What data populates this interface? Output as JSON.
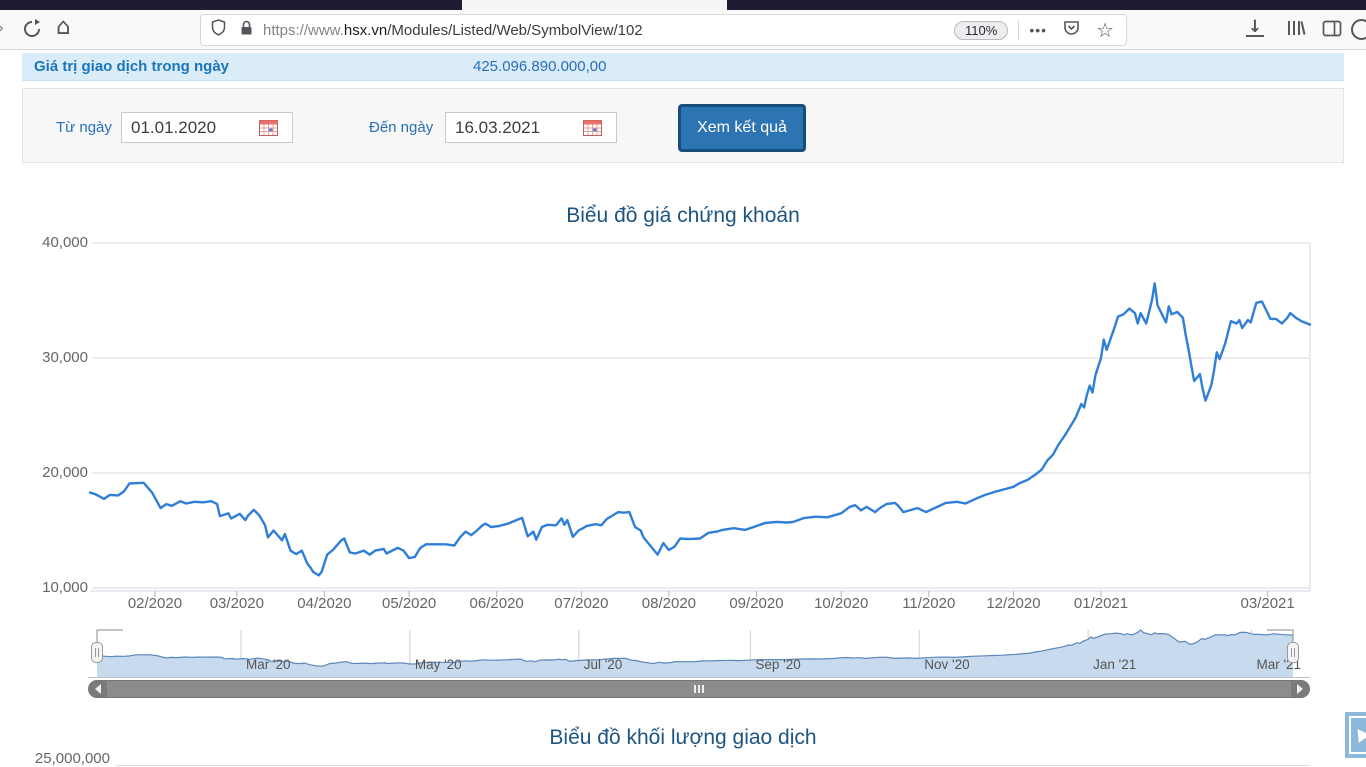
{
  "browser": {
    "url_protocol": "https://www.",
    "url_domain": "hsx.vn",
    "url_path": "/Modules/Listed/Web/SymbolView/102",
    "zoom_level": "110%",
    "icons": {
      "forward_chevron": "›",
      "home": "⌂",
      "star": "☆",
      "dots_menu": "•••",
      "download_arrow": "↓"
    }
  },
  "stats_row": {
    "label": "Giá trị giao dịch trong ngày",
    "value": "425.096.890.000,00"
  },
  "filter": {
    "from_label": "Từ ngày",
    "from_value": "01.01.2020",
    "to_label": "Đến ngày",
    "to_value": "16.03.2021",
    "submit_label": "Xem kết quả"
  },
  "chart_data": {
    "type": "line",
    "title": "Biểu đồ giá chứng khoán",
    "xlabel": "",
    "ylabel": "",
    "ylim": [
      10000,
      40000
    ],
    "grid": true,
    "x_range": [
      "2020-01-09",
      "2021-03-16"
    ],
    "yticks": [
      {
        "label": "40,000",
        "value": 40000
      },
      {
        "label": "30,000",
        "value": 30000
      },
      {
        "label": "20,000",
        "value": 20000
      },
      {
        "label": "10,000",
        "value": 10000
      }
    ],
    "xticks": [
      {
        "label": "02/2020",
        "date": "2020-02-01"
      },
      {
        "label": "03/2020",
        "date": "2020-03-01"
      },
      {
        "label": "04/2020",
        "date": "2020-04-01"
      },
      {
        "label": "05/2020",
        "date": "2020-05-01"
      },
      {
        "label": "06/2020",
        "date": "2020-06-01"
      },
      {
        "label": "07/2020",
        "date": "2020-07-01"
      },
      {
        "label": "08/2020",
        "date": "2020-08-01"
      },
      {
        "label": "09/2020",
        "date": "2020-09-01"
      },
      {
        "label": "10/2020",
        "date": "2020-10-01"
      },
      {
        "label": "11/2020",
        "date": "2020-11-01"
      },
      {
        "label": "12/2020",
        "date": "2020-12-01"
      },
      {
        "label": "01/2021",
        "date": "2021-01-01"
      },
      {
        "label": "03/2021",
        "date": "2021-03-01"
      }
    ],
    "navigator_labels": [
      {
        "label": "Mar '20",
        "date": "2020-03-01"
      },
      {
        "label": "May '20",
        "date": "2020-05-01"
      },
      {
        "label": "Jul '20",
        "date": "2020-07-01"
      },
      {
        "label": "Sep '20",
        "date": "2020-09-01"
      },
      {
        "label": "Nov '20",
        "date": "2020-11-01"
      },
      {
        "label": "Jan '21",
        "date": "2021-01-01"
      },
      {
        "label": "Mar '21",
        "date": "2021-03-01"
      }
    ],
    "series": [
      {
        "name": "price",
        "points": [
          [
            "2020-01-09",
            18300
          ],
          [
            "2020-01-11",
            18150
          ],
          [
            "2020-01-14",
            17750
          ],
          [
            "2020-01-16",
            18100
          ],
          [
            "2020-01-19",
            18050
          ],
          [
            "2020-01-21",
            18400
          ],
          [
            "2020-01-23",
            19100
          ],
          [
            "2020-01-28",
            19150
          ],
          [
            "2020-01-31",
            18300
          ],
          [
            "2020-02-03",
            16950
          ],
          [
            "2020-02-05",
            17300
          ],
          [
            "2020-02-07",
            17150
          ],
          [
            "2020-02-10",
            17550
          ],
          [
            "2020-02-12",
            17350
          ],
          [
            "2020-02-15",
            17500
          ],
          [
            "2020-02-18",
            17450
          ],
          [
            "2020-02-21",
            17550
          ],
          [
            "2020-02-23",
            17300
          ],
          [
            "2020-02-24",
            16250
          ],
          [
            "2020-02-27",
            16500
          ],
          [
            "2020-02-28",
            16050
          ],
          [
            "2020-03-02",
            16450
          ],
          [
            "2020-03-04",
            15900
          ],
          [
            "2020-03-05",
            16300
          ],
          [
            "2020-03-07",
            16800
          ],
          [
            "2020-03-09",
            16300
          ],
          [
            "2020-03-11",
            15450
          ],
          [
            "2020-03-12",
            14400
          ],
          [
            "2020-03-14",
            15000
          ],
          [
            "2020-03-17",
            14150
          ],
          [
            "2020-03-18",
            14700
          ],
          [
            "2020-03-20",
            13250
          ],
          [
            "2020-03-22",
            12950
          ],
          [
            "2020-03-24",
            13250
          ],
          [
            "2020-03-26",
            12100
          ],
          [
            "2020-03-27",
            11800
          ],
          [
            "2020-03-28",
            11400
          ],
          [
            "2020-03-30",
            11100
          ],
          [
            "2020-03-31",
            11400
          ],
          [
            "2020-04-02",
            12900
          ],
          [
            "2020-04-04",
            13300
          ],
          [
            "2020-04-07",
            14150
          ],
          [
            "2020-04-08",
            14300
          ],
          [
            "2020-04-10",
            13100
          ],
          [
            "2020-04-12",
            13000
          ],
          [
            "2020-04-15",
            13250
          ],
          [
            "2020-04-17",
            12900
          ],
          [
            "2020-04-19",
            13250
          ],
          [
            "2020-04-22",
            13400
          ],
          [
            "2020-04-23",
            13000
          ],
          [
            "2020-04-27",
            13500
          ],
          [
            "2020-04-29",
            13250
          ],
          [
            "2020-05-01",
            12600
          ],
          [
            "2020-05-03",
            12700
          ],
          [
            "2020-05-05",
            13500
          ],
          [
            "2020-05-07",
            13800
          ],
          [
            "2020-05-14",
            13800
          ],
          [
            "2020-05-17",
            13700
          ],
          [
            "2020-05-19",
            14400
          ],
          [
            "2020-05-21",
            14900
          ],
          [
            "2020-05-23",
            14600
          ],
          [
            "2020-05-25",
            15000
          ],
          [
            "2020-05-27",
            15450
          ],
          [
            "2020-05-28",
            15600
          ],
          [
            "2020-05-30",
            15300
          ],
          [
            "2020-06-02",
            15400
          ],
          [
            "2020-06-05",
            15600
          ],
          [
            "2020-06-08",
            15900
          ],
          [
            "2020-06-10",
            16100
          ],
          [
            "2020-06-12",
            14500
          ],
          [
            "2020-06-14",
            14900
          ],
          [
            "2020-06-15",
            14200
          ],
          [
            "2020-06-17",
            15300
          ],
          [
            "2020-06-19",
            15500
          ],
          [
            "2020-06-22",
            15450
          ],
          [
            "2020-06-24",
            16050
          ],
          [
            "2020-06-25",
            15500
          ],
          [
            "2020-06-26",
            15900
          ],
          [
            "2020-06-28",
            14450
          ],
          [
            "2020-06-30",
            15000
          ],
          [
            "2020-07-03",
            15400
          ],
          [
            "2020-07-06",
            15550
          ],
          [
            "2020-07-08",
            15450
          ],
          [
            "2020-07-10",
            16000
          ],
          [
            "2020-07-14",
            16600
          ],
          [
            "2020-07-16",
            16550
          ],
          [
            "2020-07-18",
            16600
          ],
          [
            "2020-07-20",
            15300
          ],
          [
            "2020-07-22",
            15000
          ],
          [
            "2020-07-23",
            14400
          ],
          [
            "2020-07-26",
            13500
          ],
          [
            "2020-07-28",
            12900
          ],
          [
            "2020-07-30",
            13900
          ],
          [
            "2020-08-01",
            13300
          ],
          [
            "2020-08-03",
            13600
          ],
          [
            "2020-08-05",
            14300
          ],
          [
            "2020-08-08",
            14250
          ],
          [
            "2020-08-12",
            14300
          ],
          [
            "2020-08-15",
            14800
          ],
          [
            "2020-08-18",
            14900
          ],
          [
            "2020-08-20",
            15050
          ],
          [
            "2020-08-24",
            15200
          ],
          [
            "2020-08-28",
            15050
          ],
          [
            "2020-08-31",
            15300
          ],
          [
            "2020-09-04",
            15650
          ],
          [
            "2020-09-08",
            15750
          ],
          [
            "2020-09-12",
            15700
          ],
          [
            "2020-09-14",
            15750
          ],
          [
            "2020-09-18",
            16100
          ],
          [
            "2020-09-22",
            16200
          ],
          [
            "2020-09-26",
            16150
          ],
          [
            "2020-10-01",
            16500
          ],
          [
            "2020-10-04",
            17050
          ],
          [
            "2020-10-06",
            17200
          ],
          [
            "2020-10-08",
            16750
          ],
          [
            "2020-10-10",
            17050
          ],
          [
            "2020-10-13",
            16600
          ],
          [
            "2020-10-15",
            17000
          ],
          [
            "2020-10-17",
            17300
          ],
          [
            "2020-10-20",
            17400
          ],
          [
            "2020-10-21",
            17200
          ],
          [
            "2020-10-23",
            16600
          ],
          [
            "2020-10-28",
            16950
          ],
          [
            "2020-10-31",
            16600
          ],
          [
            "2020-11-04",
            17050
          ],
          [
            "2020-11-07",
            17400
          ],
          [
            "2020-11-11",
            17500
          ],
          [
            "2020-11-14",
            17350
          ],
          [
            "2020-11-18",
            17800
          ],
          [
            "2020-11-21",
            18100
          ],
          [
            "2020-11-25",
            18400
          ],
          [
            "2020-11-28",
            18600
          ],
          [
            "2020-12-01",
            18800
          ],
          [
            "2020-12-03",
            19100
          ],
          [
            "2020-12-06",
            19400
          ],
          [
            "2020-12-09",
            19900
          ],
          [
            "2020-12-11",
            20300
          ],
          [
            "2020-12-13",
            21100
          ],
          [
            "2020-12-15",
            21600
          ],
          [
            "2020-12-17",
            22500
          ],
          [
            "2020-12-19",
            23200
          ],
          [
            "2020-12-21",
            24000
          ],
          [
            "2020-12-23",
            24800
          ],
          [
            "2020-12-25",
            26000
          ],
          [
            "2020-12-26",
            25700
          ],
          [
            "2020-12-27",
            26800
          ],
          [
            "2020-12-28",
            27600
          ],
          [
            "2020-12-29",
            27000
          ],
          [
            "2020-12-30",
            28500
          ],
          [
            "2021-01-01",
            30000
          ],
          [
            "2021-01-02",
            31600
          ],
          [
            "2021-01-03",
            30700
          ],
          [
            "2021-01-06",
            32800
          ],
          [
            "2021-01-07",
            33600
          ],
          [
            "2021-01-09",
            33800
          ],
          [
            "2021-01-11",
            34300
          ],
          [
            "2021-01-13",
            33900
          ],
          [
            "2021-01-14",
            33000
          ],
          [
            "2021-01-15",
            33900
          ],
          [
            "2021-01-17",
            33000
          ],
          [
            "2021-01-19",
            35000
          ],
          [
            "2021-01-20",
            36500
          ],
          [
            "2021-01-21",
            34600
          ],
          [
            "2021-01-23",
            33600
          ],
          [
            "2021-01-24",
            33100
          ],
          [
            "2021-01-25",
            34500
          ],
          [
            "2021-01-26",
            33800
          ],
          [
            "2021-01-28",
            34000
          ],
          [
            "2021-01-30",
            33500
          ],
          [
            "2021-01-31",
            32000
          ],
          [
            "2021-02-01",
            30700
          ],
          [
            "2021-02-02",
            29300
          ],
          [
            "2021-02-03",
            28000
          ],
          [
            "2021-02-05",
            28600
          ],
          [
            "2021-02-06",
            27300
          ],
          [
            "2021-02-07",
            26300
          ],
          [
            "2021-02-09",
            27600
          ],
          [
            "2021-02-10",
            28900
          ],
          [
            "2021-02-11",
            30500
          ],
          [
            "2021-02-12",
            29900
          ],
          [
            "2021-02-14",
            31300
          ],
          [
            "2021-02-16",
            33200
          ],
          [
            "2021-02-18",
            33000
          ],
          [
            "2021-02-19",
            33300
          ],
          [
            "2021-02-20",
            32600
          ],
          [
            "2021-02-22",
            33300
          ],
          [
            "2021-02-23",
            33100
          ],
          [
            "2021-02-25",
            34800
          ],
          [
            "2021-02-27",
            34900
          ],
          [
            "2021-03-02",
            33400
          ],
          [
            "2021-03-04",
            33400
          ],
          [
            "2021-03-06",
            33000
          ],
          [
            "2021-03-08",
            33500
          ],
          [
            "2021-03-09",
            33900
          ],
          [
            "2021-03-11",
            33500
          ],
          [
            "2021-03-13",
            33200
          ],
          [
            "2021-03-16",
            32900
          ]
        ]
      }
    ]
  },
  "volume_chart": {
    "title": "Biểu đồ khối lượng giao dịch",
    "first_ytick": "25,000,000"
  },
  "colors": {
    "line": "#2f7ed8",
    "nav_fill": "#c8daee",
    "nav_line": "#5b87bb",
    "grid": "#d8d8d8",
    "axis_line": "#ccd6eb",
    "title": "#1d5481",
    "accent": "#1b76bc"
  }
}
